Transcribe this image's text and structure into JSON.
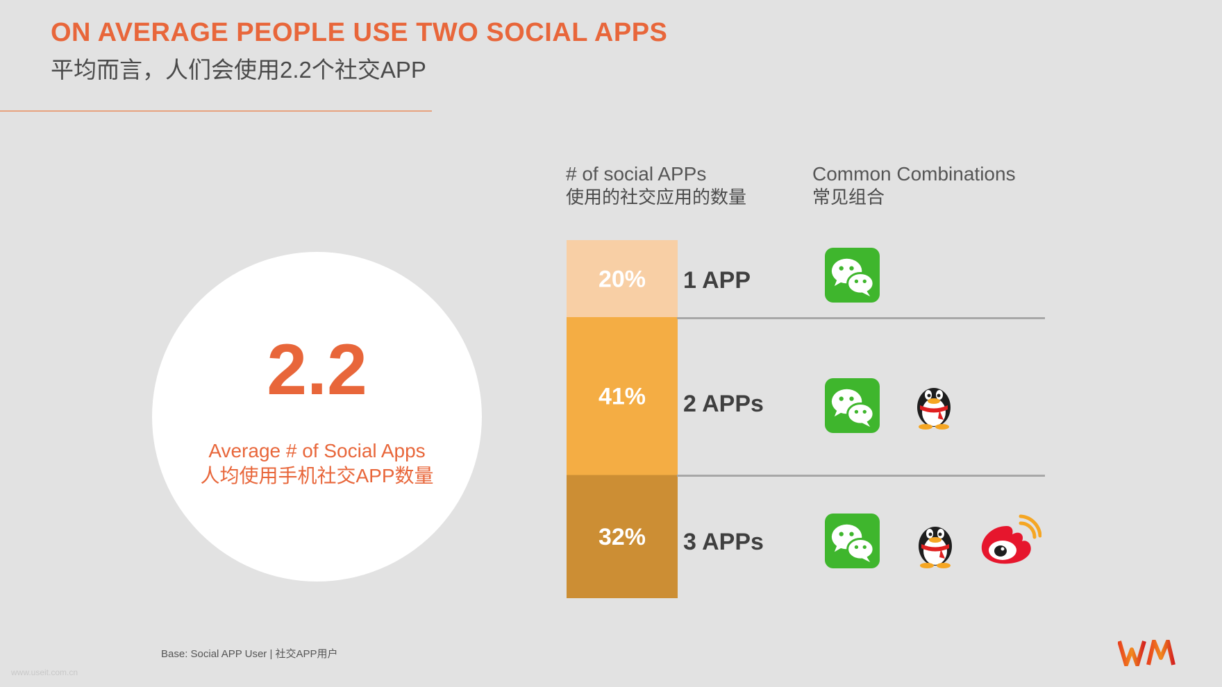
{
  "header": {
    "title_en": "ON AVERAGE PEOPLE USE TWO SOCIAL APPS",
    "title_zh": "平均而言，人们会使用2.2个社交APP"
  },
  "average": {
    "value": "2.2",
    "label_en": "Average # of Social Apps",
    "label_zh": "人均使用手机社交APP数量"
  },
  "columns": {
    "count_en": "# of social APPs",
    "count_zh": "使用的社交应用的数量",
    "combo_en": "Common Combinations",
    "combo_zh": "常见组合"
  },
  "chart_data": {
    "type": "bar",
    "categories": [
      "1 APP",
      "2 APPs",
      "3 APPs"
    ],
    "values": [
      20,
      41,
      32
    ],
    "labels": [
      "20%",
      "41%",
      "32%"
    ],
    "unit": "%",
    "colors": [
      "#f8cfa5",
      "#f4ad44",
      "#cc8e34"
    ],
    "combinations": [
      [
        "wechat"
      ],
      [
        "wechat",
        "qq"
      ],
      [
        "wechat",
        "qq",
        "weibo"
      ]
    ]
  },
  "footer": {
    "base_note": "Base: Social APP User | 社交APP用户",
    "watermark": "www.useit.com.cn"
  },
  "colors": {
    "accent": "#e8663a",
    "background": "#e2e2e2",
    "wechat_green": "#3fb62d",
    "weibo_red": "#e6162d"
  },
  "icons": [
    "wechat-icon",
    "qq-penguin-icon",
    "weibo-icon",
    "wm-logo"
  ]
}
